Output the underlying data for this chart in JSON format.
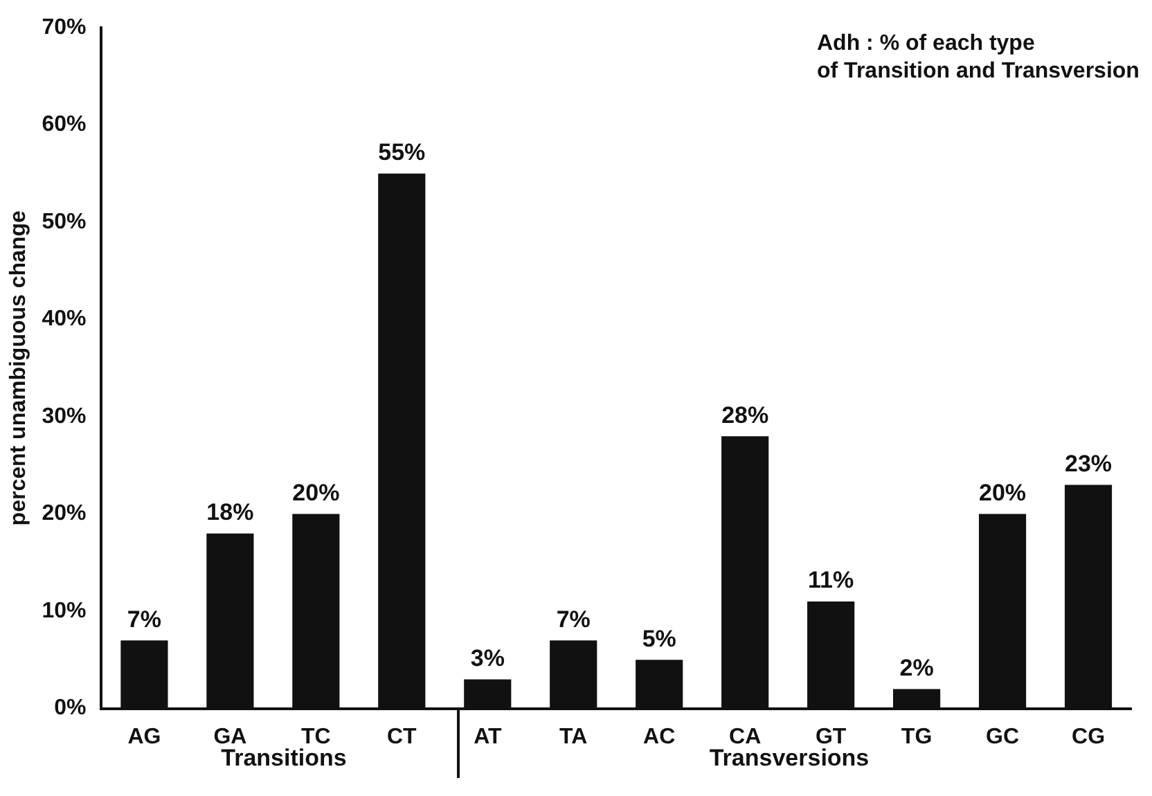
{
  "chart_data": {
    "type": "bar",
    "title": "Adh : % of each type\nof Transition and Transversion",
    "ylabel": "percent unambiguous change",
    "categories": [
      "AG",
      "GA",
      "TC",
      "CT",
      "AT",
      "TA",
      "AC",
      "CA",
      "GT",
      "TG",
      "GC",
      "CG"
    ],
    "values": [
      7,
      18,
      20,
      55,
      3,
      7,
      5,
      28,
      11,
      2,
      20,
      23
    ],
    "value_labels": [
      "7%",
      "18%",
      "20%",
      "55%",
      "3%",
      "7%",
      "5%",
      "28%",
      "11%",
      "2%",
      "20%",
      "23%"
    ],
    "color": "#111111",
    "ylim": [
      0,
      70
    ],
    "yticks": [
      {
        "value": 0,
        "label": "0%"
      },
      {
        "value": 10,
        "label": "10%"
      },
      {
        "value": 20,
        "label": "20%"
      },
      {
        "value": 30,
        "label": "30%"
      },
      {
        "value": 40,
        "label": "40%"
      },
      {
        "value": 50,
        "label": "50%"
      },
      {
        "value": 60,
        "label": "60%"
      },
      {
        "value": 70,
        "label": "70%"
      }
    ],
    "annotations": [
      "Transitions",
      "Transversions"
    ],
    "grid": false,
    "legend": false
  }
}
